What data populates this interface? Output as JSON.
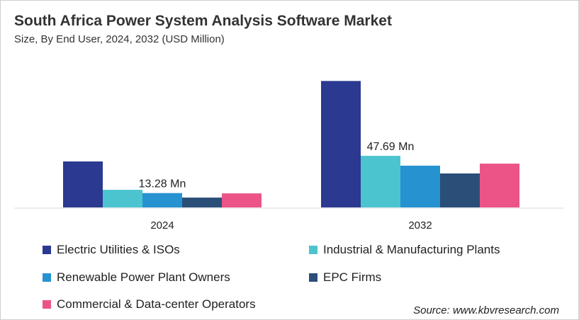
{
  "chart_data": {
    "type": "bar",
    "title": "South Africa Power System Analysis Software Market",
    "subtitle": "Size, By End User, 2024, 2032 (USD Million)",
    "categories": [
      "2024",
      "2032"
    ],
    "ylim": [
      0,
      125
    ],
    "grid": false,
    "legend_position": "bottom",
    "series": [
      {
        "name": "Electric Utilities & ISOs",
        "color": "#2b3990",
        "values": [
          42.5,
          116.9
        ]
      },
      {
        "name": "Industrial & Manufacturing Plants",
        "color": "#4bc4cf",
        "values": [
          16.3,
          47.69
        ]
      },
      {
        "name": "Renewable Power Plant Owners",
        "color": "#2792d0",
        "values": [
          13.28,
          38.6
        ]
      },
      {
        "name": "EPC Firms",
        "color": "#2b4e78",
        "values": [
          9.1,
          31.4
        ]
      },
      {
        "name": "Commercial & Data-center Operators",
        "color": "#ec5488",
        "values": [
          13.0,
          40.5
        ]
      }
    ],
    "annotations": [
      {
        "category": "2024",
        "series": 2,
        "text": "13.28 Mn"
      },
      {
        "category": "2032",
        "series": 1,
        "text": "47.69 Mn"
      }
    ]
  },
  "source": "Source: www.kbvresearch.com"
}
